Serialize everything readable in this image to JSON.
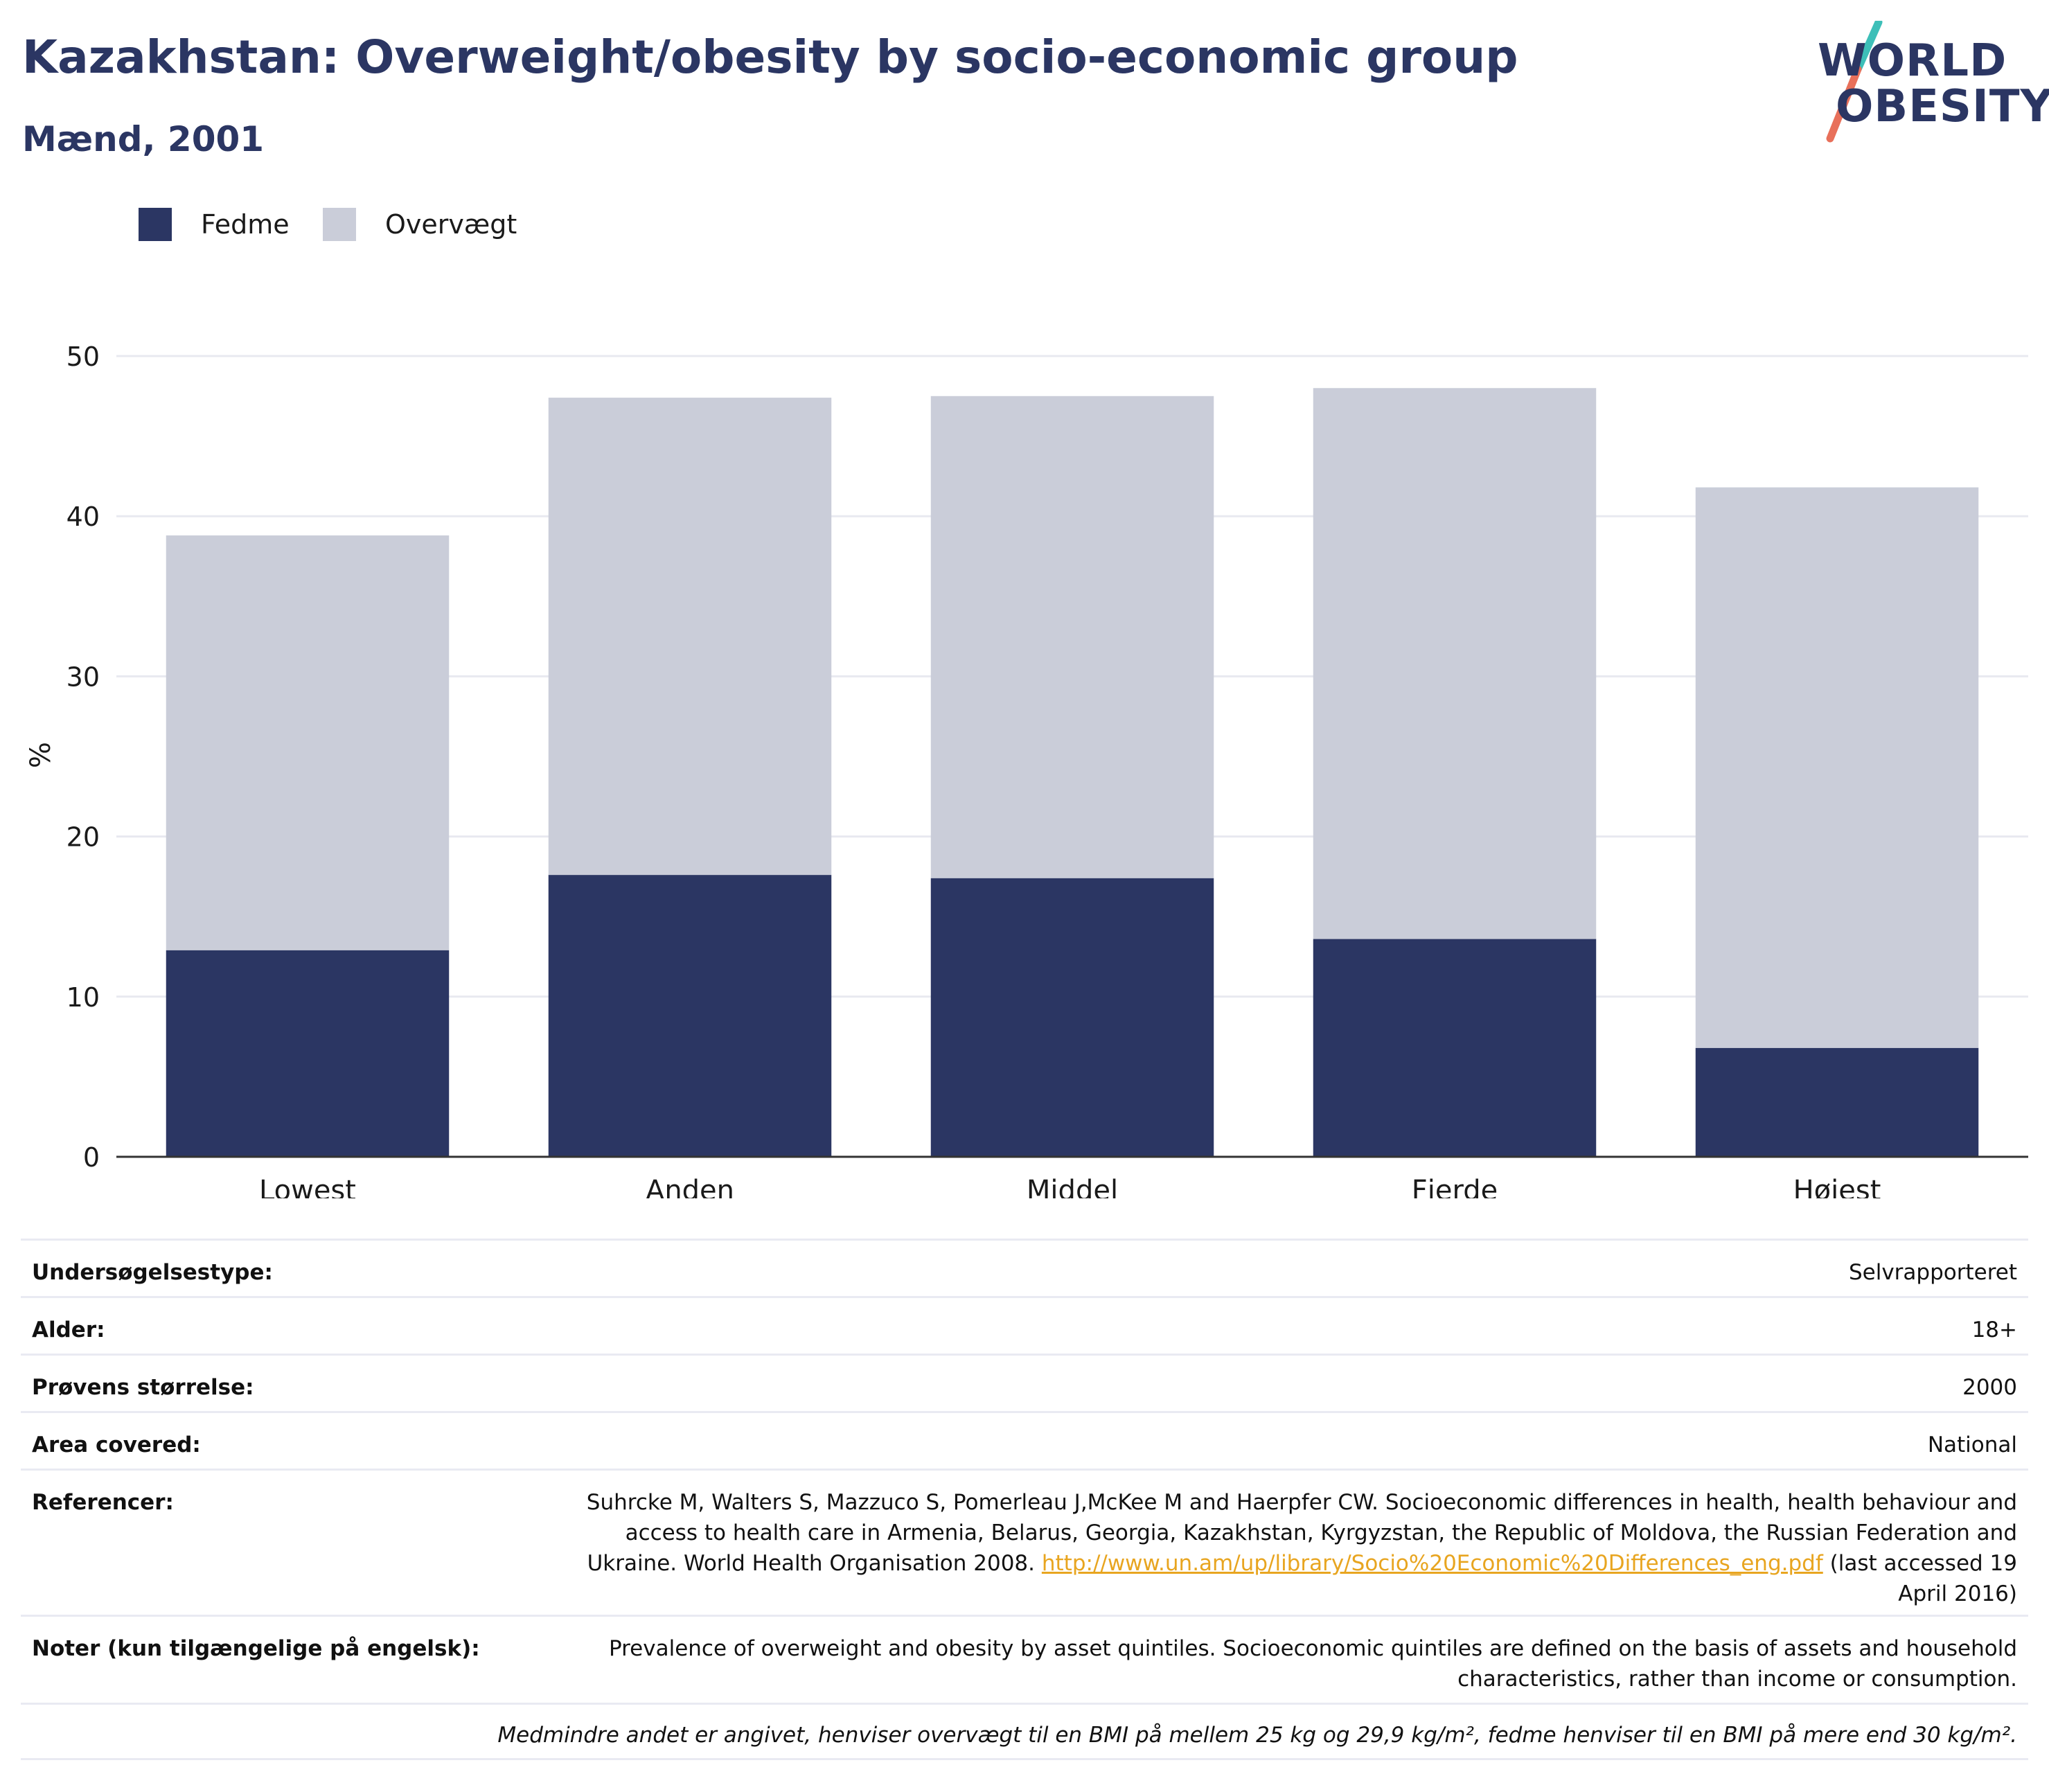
{
  "title": "Kazakhstan: Overweight/obesity by socio-economic group",
  "subtitle": "Mænd, 2001",
  "logo": {
    "line1": "WORLD",
    "line2": "OBESITY",
    "accent_top": "#3dbfb8",
    "accent_bottom": "#e8705a"
  },
  "colors": {
    "obesity": "#2b3663",
    "overweight": "#cacdd9",
    "gridline": "#e8e9f0",
    "axis": "#333333"
  },
  "legend": [
    {
      "label": "Fedme",
      "color": "#2b3663"
    },
    {
      "label": "Overvægt",
      "color": "#cacdd9"
    }
  ],
  "chart_data": {
    "type": "bar",
    "stacked": true,
    "categories": [
      "Lowest",
      "Anden",
      "Middel",
      "Fjerde",
      "Højest"
    ],
    "series": [
      {
        "name": "Fedme",
        "values": [
          12.9,
          17.6,
          17.4,
          13.6,
          6.8
        ]
      },
      {
        "name": "Overvægt",
        "values": [
          25.9,
          29.8,
          30.1,
          34.4,
          35.0
        ]
      }
    ],
    "totals": [
      38.8,
      47.4,
      47.5,
      48.0,
      41.8
    ],
    "ylabel": "%",
    "ylim": [
      0,
      50
    ],
    "yticks": [
      0,
      10,
      20,
      30,
      40,
      50
    ],
    "grid": true,
    "legend_position": "top-left"
  },
  "info": [
    {
      "label": "Undersøgelsestype:",
      "value": "Selvrapporteret"
    },
    {
      "label": "Alder:",
      "value": "18+"
    },
    {
      "label": "Prøvens størrelse:",
      "value": "2000"
    },
    {
      "label": "Area covered:",
      "value": "National"
    }
  ],
  "references": {
    "label": "Referencer:",
    "text_line1": "Suhrcke M, Walters S, Mazzuco S, Pomerleau J,McKee M and Haerpfer CW. Socioeconomic differences in health, health behaviour and",
    "text_line2": "access to health care in Armenia, Belarus, Georgia, Kazakhstan, Kyrgyzstan, the Republic of Moldova, the Russian Federation and",
    "text_line3_before": "Ukraine. World Health Organisation 2008. ",
    "link": "http://www.un.am/up/library/Socio%20Economic%20Differences_eng.pdf",
    "text_line3_after": " (last accessed 19",
    "text_line4": "April 2016)"
  },
  "notes": {
    "label": "Noter (kun tilgængelige på engelsk):",
    "line1": "Prevalence of overweight and obesity by asset quintiles. Socioeconomic quintiles are defined on the basis of assets and household",
    "line2": "characteristics, rather than income or consumption."
  },
  "footnote": "Medmindre andet er angivet, henviser overvægt til en BMI på mellem 25 kg og 29,9 kg/m², fedme henviser til en BMI på mere end 30 kg/m²."
}
